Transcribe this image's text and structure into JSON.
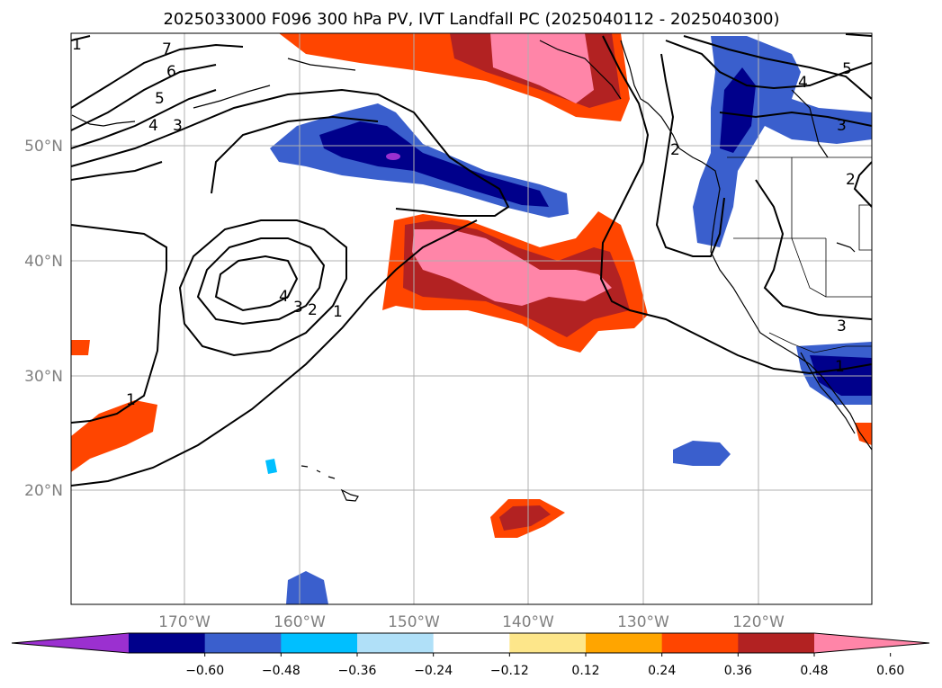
{
  "title": "2025033000 F096 300 hPa PV, IVT Landfall PC (2025040112 - 2025040300)",
  "map": {
    "lat_labels": [
      "50°N",
      "40°N",
      "30°N",
      "20°N"
    ],
    "lon_labels": [
      "170°W",
      "160°W",
      "150°W",
      "140°W",
      "130°W",
      "120°W"
    ],
    "contour_labels": [
      "1",
      "2",
      "3",
      "4",
      "5",
      "6",
      "7"
    ],
    "shading_colors": {
      "neg_extreme": "#9b30d0",
      "neg_060": "#00008b",
      "neg_048": "#3a5fcd",
      "neg_036": "#00bfff",
      "neg_024": "#b0e0f8",
      "neutral": "#ffffff",
      "pos_012": "#fde68a",
      "pos_024": "#ffa500",
      "pos_036": "#ff4500",
      "pos_048": "#b22222",
      "pos_060": "#ff85a8"
    }
  },
  "colorbar": {
    "ticks": [
      "−0.60",
      "−0.48",
      "−0.36",
      "−0.24",
      "−0.12",
      "0.12",
      "0.24",
      "0.36",
      "0.48",
      "0.60"
    ],
    "colors": [
      "#00008b",
      "#3a5fcd",
      "#00bfff",
      "#b0e0f8",
      "#ffffff",
      "#fde68a",
      "#ffa500",
      "#ff4500",
      "#b22222"
    ],
    "extend_min_color": "#9b30d0",
    "extend_max_color": "#ff85a8"
  }
}
